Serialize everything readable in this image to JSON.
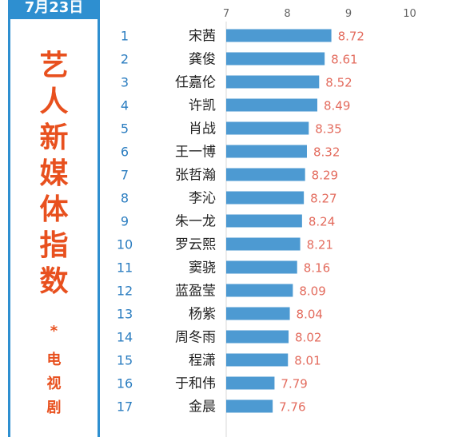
{
  "header": {
    "date_badge": "7月23日",
    "title_chars": [
      "艺",
      "人",
      "新",
      "媒",
      "体",
      "指",
      "数"
    ],
    "star": "*",
    "subtitle_chars": [
      "电",
      "视",
      "剧"
    ]
  },
  "colors": {
    "bar": "#4d9ad2",
    "rank": "#2b7dc0",
    "value_label": "#e36b5d",
    "title": "#e8501e",
    "frame": "#2e8fd0",
    "axis_tick": "#666666",
    "name": "#222222"
  },
  "chart_data": {
    "type": "bar",
    "orientation": "horizontal",
    "title": "艺人新媒体指数",
    "subtitle": "电视剧",
    "date": "7月23日",
    "xlabel": "",
    "ylabel": "",
    "xlim": [
      7,
      10
    ],
    "xticks": [
      "7",
      "8",
      "9",
      "10"
    ],
    "grid": false,
    "ranks": [
      "1",
      "2",
      "3",
      "4",
      "5",
      "6",
      "7",
      "8",
      "9",
      "10",
      "11",
      "12",
      "13",
      "14",
      "15",
      "16",
      "17"
    ],
    "categories": [
      "宋茜",
      "龚俊",
      "任嘉伦",
      "许凯",
      "肖战",
      "王一博",
      "张哲瀚",
      "李沁",
      "朱一龙",
      "罗云熙",
      "窦骁",
      "蓝盈莹",
      "杨紫",
      "周冬雨",
      "程潇",
      "于和伟",
      "金晨"
    ],
    "values": [
      8.72,
      8.61,
      8.52,
      8.49,
      8.35,
      8.32,
      8.29,
      8.27,
      8.24,
      8.21,
      8.16,
      8.09,
      8.04,
      8.02,
      8.01,
      7.79,
      7.76
    ],
    "value_labels": [
      "8.72",
      "8.61",
      "8.52",
      "8.49",
      "8.35",
      "8.32",
      "8.29",
      "8.27",
      "8.24",
      "8.21",
      "8.16",
      "8.09",
      "8.04",
      "8.02",
      "8.01",
      "7.79",
      "7.76"
    ]
  }
}
